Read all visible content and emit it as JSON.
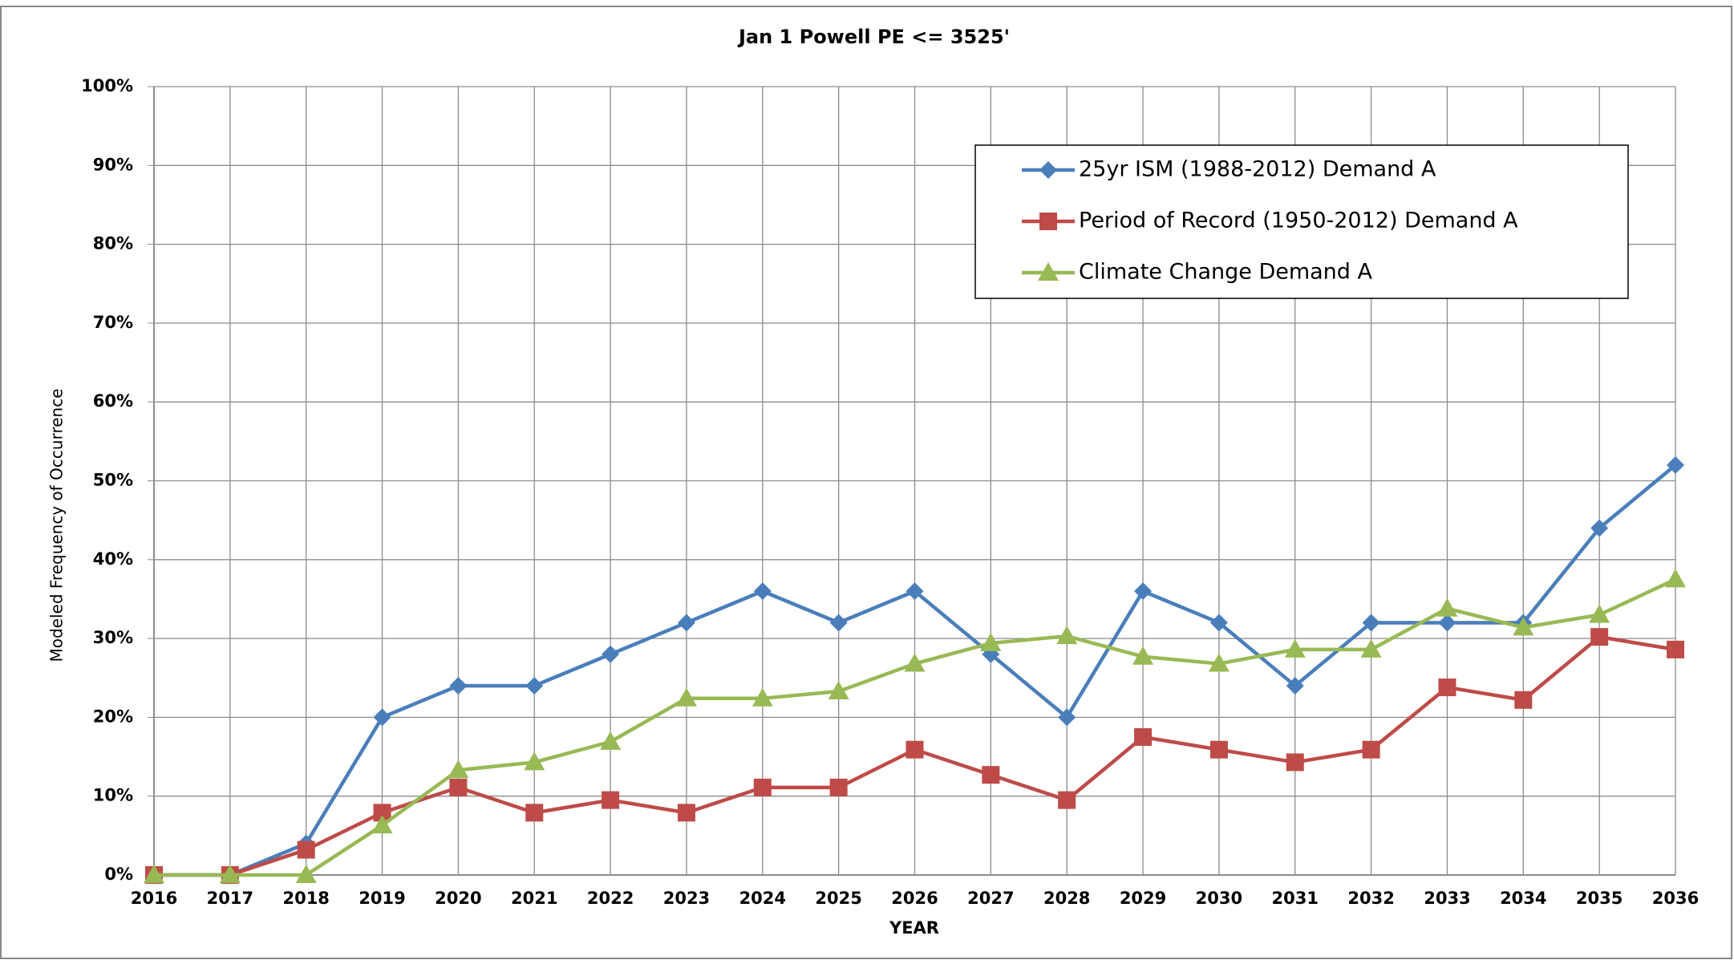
{
  "chart_data": {
    "type": "line",
    "title": "Jan 1 Powell PE <=  3525'",
    "x_label": "YEAR",
    "y_label": "Modeled Frequency of Occurrence",
    "categories": [
      "2016",
      "2017",
      "2018",
      "2019",
      "2020",
      "2021",
      "2022",
      "2023",
      "2024",
      "2025",
      "2026",
      "2027",
      "2028",
      "2029",
      "2030",
      "2031",
      "2032",
      "2033",
      "2034",
      "2035",
      "2036"
    ],
    "series": [
      {
        "name": "25yr ISM (1988-2012) Demand A",
        "color": "#4a7ebb",
        "marker": "diamond",
        "values": [
          0,
          0,
          4,
          20,
          24,
          24,
          28,
          32,
          36,
          32,
          36,
          28,
          20,
          36,
          32,
          24,
          32,
          32,
          32,
          44,
          52
        ]
      },
      {
        "name": "Period of Record (1950-2012) Demand A",
        "color": "#be4b48",
        "marker": "square",
        "values": [
          0,
          0,
          3.2,
          7.9,
          11.1,
          7.9,
          9.5,
          7.9,
          11.1,
          11.1,
          15.9,
          12.7,
          9.5,
          17.5,
          15.9,
          14.3,
          15.9,
          23.8,
          22.2,
          30.2,
          28.6
        ]
      },
      {
        "name": "Climate Change Demand A",
        "color": "#98b954",
        "marker": "triangle",
        "values": [
          0,
          0,
          0,
          6.3,
          13.3,
          14.3,
          16.9,
          22.4,
          22.4,
          23.3,
          26.8,
          29.4,
          30.3,
          27.7,
          26.8,
          28.6,
          28.6,
          33.8,
          31.4,
          33.0,
          37.5
        ]
      }
    ],
    "ylim": [
      0,
      100
    ],
    "yticks": [
      {
        "value": 0,
        "label": "0%"
      },
      {
        "value": 10,
        "label": "10%"
      },
      {
        "value": 20,
        "label": "20%"
      },
      {
        "value": 30,
        "label": "30%"
      },
      {
        "value": 40,
        "label": "40%"
      },
      {
        "value": 50,
        "label": "50%"
      },
      {
        "value": 60,
        "label": "60%"
      },
      {
        "value": 70,
        "label": "70%"
      },
      {
        "value": 80,
        "label": "80%"
      },
      {
        "value": 90,
        "label": "90%"
      },
      {
        "value": 100,
        "label": "100%"
      }
    ],
    "grid": true,
    "legend": "upper right"
  }
}
